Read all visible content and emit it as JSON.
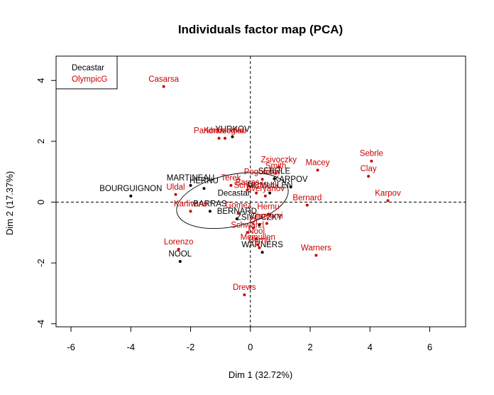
{
  "chart_data": {
    "type": "scatter",
    "title": "Individuals factor map (PCA)",
    "xlabel": "Dim 1 (32.72%)",
    "ylabel": "Dim 2 (17.37%)",
    "xlim": [
      -6.5,
      7.2
    ],
    "ylim": [
      -4.1,
      4.8
    ],
    "x_ticks": [
      -6,
      -4,
      -2,
      0,
      2,
      4,
      6
    ],
    "y_ticks": [
      -4,
      -2,
      0,
      2,
      4
    ],
    "grid": false,
    "reference_lines": "dashed at x=0 and y=0",
    "legend_position": "top-left",
    "legend": [
      {
        "name": "Decastar",
        "color": "#000000"
      },
      {
        "name": "OlympicG",
        "color": "#cc0000"
      }
    ],
    "ellipse_label": "Decastar",
    "series": [
      {
        "name": "Decastar",
        "color": "#000000",
        "points": [
          {
            "label": "YURKOV",
            "x": -0.6,
            "y": 2.15
          },
          {
            "label": "SEBRLE",
            "x": 0.8,
            "y": 0.77
          },
          {
            "label": "KARPOV",
            "x": 1.35,
            "y": 0.5
          },
          {
            "label": "MCMULLEN",
            "x": 0.65,
            "y": 0.3
          },
          {
            "label": "MARTINEAU",
            "x": -2.0,
            "y": 0.55
          },
          {
            "label": "HERNU",
            "x": -1.55,
            "y": 0.45
          },
          {
            "label": "BOURGUIGNON",
            "x": -4.0,
            "y": 0.2
          },
          {
            "label": "BARRAS",
            "x": -1.35,
            "y": -0.3
          },
          {
            "label": "BERNARD",
            "x": -0.45,
            "y": -0.55
          },
          {
            "label": "ZSIVOCZKY",
            "x": 0.3,
            "y": -0.75
          },
          {
            "label": "WARNERS",
            "x": 0.4,
            "y": -1.65
          },
          {
            "label": "NOOL",
            "x": -2.35,
            "y": -1.95
          }
        ]
      },
      {
        "name": "OlympicG",
        "color": "#cc0000",
        "points": [
          {
            "label": "Casarsa",
            "x": -2.9,
            "y": 3.8
          },
          {
            "label": "Parkhomenko",
            "x": -1.05,
            "y": 2.1
          },
          {
            "label": "Korkizoglou",
            "x": -0.85,
            "y": 2.1
          },
          {
            "label": "Sebrle",
            "x": 4.05,
            "y": 1.35
          },
          {
            "label": "Clay",
            "x": 3.95,
            "y": 0.85
          },
          {
            "label": "Karpov",
            "x": 4.6,
            "y": 0.05
          },
          {
            "label": "Macey",
            "x": 2.25,
            "y": 1.05
          },
          {
            "label": "Zsivoczky",
            "x": 0.95,
            "y": 1.15
          },
          {
            "label": "Smith",
            "x": 0.85,
            "y": 0.95
          },
          {
            "label": "Terek",
            "x": -0.65,
            "y": 0.55
          },
          {
            "label": "Pogorelov",
            "x": 0.4,
            "y": 0.75
          },
          {
            "label": "Barras",
            "x": -0.1,
            "y": 0.4
          },
          {
            "label": "Schoenbeck",
            "x": 0.2,
            "y": 0.3
          },
          {
            "label": "Averyanov",
            "x": 0.5,
            "y": 0.2
          },
          {
            "label": "Bernard",
            "x": 1.9,
            "y": -0.1
          },
          {
            "label": "Uldal",
            "x": -2.5,
            "y": 0.25
          },
          {
            "label": "Karlivans",
            "x": -2.0,
            "y": -0.3
          },
          {
            "label": "Hernu",
            "x": 0.6,
            "y": -0.4
          },
          {
            "label": "Gomez",
            "x": -0.4,
            "y": -0.35
          },
          {
            "label": "Ojaniemi",
            "x": 0.55,
            "y": -0.7
          },
          {
            "label": "Qi",
            "x": 0.1,
            "y": -0.85
          },
          {
            "label": "Schwarzl",
            "x": -0.1,
            "y": -1.0
          },
          {
            "label": "Nool",
            "x": 0.2,
            "y": -1.2
          },
          {
            "label": "Lorenzo",
            "x": -2.4,
            "y": -1.55
          },
          {
            "label": "Warners",
            "x": 2.2,
            "y": -1.75
          },
          {
            "label": "Drews",
            "x": -0.2,
            "y": -3.05
          },
          {
            "label": "Hernu",
            "x": 0.3,
            "y": -1.5
          },
          {
            "label": "Mcmullen",
            "x": 0.25,
            "y": -1.4
          }
        ]
      }
    ]
  }
}
